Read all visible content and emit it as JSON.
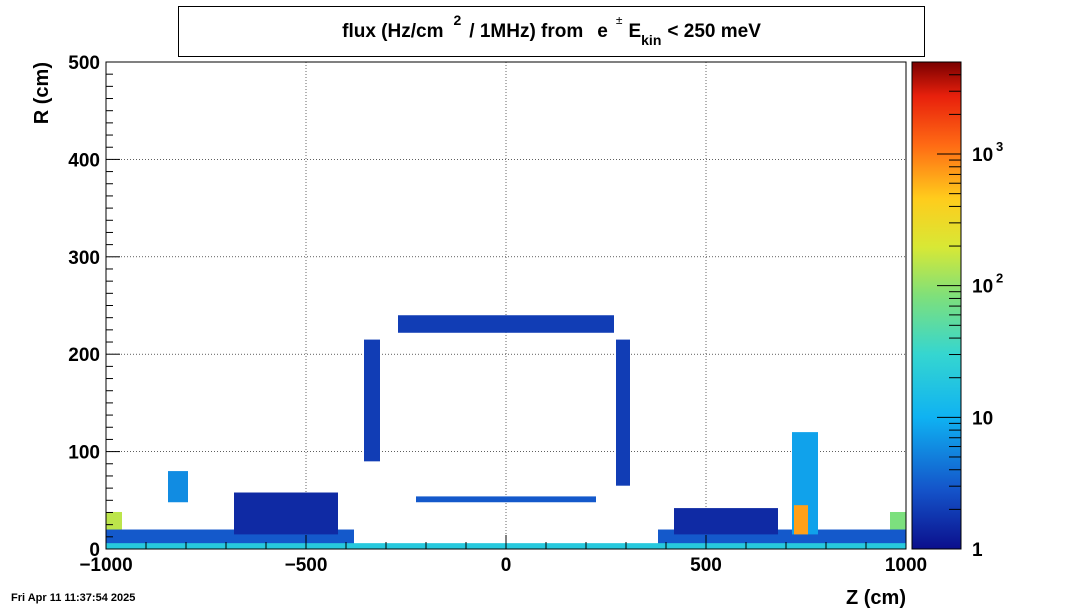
{
  "chart_data": {
    "type": "heatmap",
    "title": {
      "part1": "flux (Hz/cm",
      "sup1": "2",
      "part2": "/ 1MHz) from",
      "particle": "e",
      "particle_sup": "±",
      "var": "E",
      "var_sub": "kin",
      "cut": "< 250 meV"
    },
    "xlabel": "Z (cm)",
    "ylabel": "R (cm)",
    "xlim": [
      -1000,
      1000
    ],
    "ylim": [
      0,
      500
    ],
    "x_ticks": [
      -1000,
      -500,
      0,
      500,
      1000
    ],
    "x_tick_labels": [
      "−1000",
      "−500",
      "0",
      "500",
      "1000"
    ],
    "y_ticks": [
      0,
      100,
      200,
      300,
      400,
      500
    ],
    "y_tick_labels": [
      "0",
      "100",
      "200",
      "300",
      "400",
      "500"
    ],
    "grid": true,
    "colorbar": {
      "scale": "log",
      "min": 1,
      "max": 5000,
      "ticks": [
        1,
        10,
        100,
        1000
      ],
      "tick_labels": [
        {
          "base": "1",
          "exp": ""
        },
        {
          "base": "10",
          "exp": ""
        },
        {
          "base": "10",
          "exp": "2"
        },
        {
          "base": "10",
          "exp": "3"
        }
      ]
    },
    "regions": [
      {
        "z": [
          -270,
          270
        ],
        "r": [
          222,
          240
        ],
        "value": 2
      },
      {
        "z": [
          -355,
          -315
        ],
        "r": [
          90,
          215
        ],
        "value": 2
      },
      {
        "z": [
          275,
          310
        ],
        "r": [
          65,
          215
        ],
        "value": 2
      },
      {
        "z": [
          -225,
          225
        ],
        "r": [
          48,
          54
        ],
        "value": 3
      },
      {
        "z": [
          -845,
          -795
        ],
        "r": [
          48,
          80
        ],
        "value": 6
      },
      {
        "z": [
          -1000,
          -960
        ],
        "r": [
          5,
          38
        ],
        "value": 150
      },
      {
        "z": [
          960,
          1000
        ],
        "r": [
          5,
          38
        ],
        "value": 80
      },
      {
        "z": [
          -1000,
          -380
        ],
        "r": [
          2,
          20
        ],
        "value": 3
      },
      {
        "z": [
          380,
          1000
        ],
        "r": [
          2,
          20
        ],
        "value": 3
      },
      {
        "z": [
          -680,
          -420
        ],
        "r": [
          15,
          58
        ],
        "value": 1.5
      },
      {
        "z": [
          420,
          680
        ],
        "r": [
          15,
          42
        ],
        "value": 1.5
      },
      {
        "z": [
          715,
          780
        ],
        "r": [
          15,
          120
        ],
        "value": 8
      },
      {
        "z": [
          720,
          755
        ],
        "r": [
          15,
          45
        ],
        "value": 700
      },
      {
        "z": [
          -1000,
          1000
        ],
        "r": [
          0,
          6
        ],
        "value": 20
      }
    ]
  },
  "footer": {
    "timestamp": "Fri Apr 11 11:37:54 2025"
  }
}
